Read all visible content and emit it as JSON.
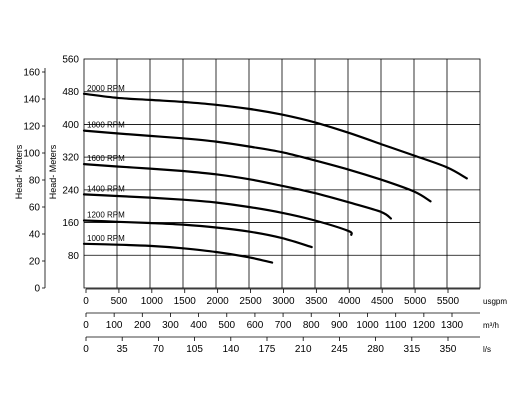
{
  "chart_data": {
    "type": "line",
    "title": "",
    "ylabel_feet": "Head- Meters",
    "ylabel_meters": "Head- Meters",
    "feet_ticks": [
      "0",
      "20",
      "40",
      "60",
      "80",
      "100",
      "120",
      "140",
      "160"
    ],
    "meter_ticks": [
      "80",
      "160",
      "240",
      "320",
      "400",
      "480",
      "560"
    ],
    "x_usgpm": {
      "label": "usgpm",
      "ticks": [
        "0",
        "500",
        "1000",
        "1500",
        "2000",
        "2500",
        "3000",
        "3500",
        "4000",
        "4500",
        "5000",
        "5500"
      ],
      "range": [
        0,
        6000
      ]
    },
    "x_m3h": {
      "label": "m³/h",
      "ticks": [
        "0",
        "100",
        "200",
        "300",
        "400",
        "500",
        "600",
        "700",
        "800",
        "900",
        "1000",
        "1100",
        "1200",
        "1300"
      ]
    },
    "x_ls": {
      "label": "l/s",
      "ticks": [
        "0",
        "35",
        "70",
        "105",
        "140",
        "175",
        "210",
        "245",
        "280",
        "315",
        "350"
      ]
    },
    "ylim": [
      0,
      560
    ],
    "grid": true,
    "series": [
      {
        "name": "2000 RPM",
        "x": [
          0,
          500,
          1000,
          1500,
          2000,
          2500,
          3000,
          3500,
          4000,
          4500,
          5000,
          5500,
          5800
        ],
        "y": [
          475,
          465,
          460,
          455,
          448,
          438,
          424,
          405,
          380,
          352,
          324,
          295,
          268
        ]
      },
      {
        "name": "1800 RPM",
        "x": [
          0,
          500,
          1000,
          1500,
          2000,
          2500,
          3000,
          3500,
          4000,
          4500,
          5000,
          5250
        ],
        "y": [
          385,
          378,
          372,
          366,
          358,
          346,
          332,
          312,
          290,
          265,
          236,
          212
        ]
      },
      {
        "name": "1600 RPM",
        "x": [
          0,
          500,
          1000,
          1500,
          2000,
          2500,
          3000,
          3500,
          4000,
          4500,
          4650
        ],
        "y": [
          303,
          297,
          292,
          286,
          278,
          266,
          250,
          232,
          210,
          186,
          170
        ]
      },
      {
        "name": "1400 RPM",
        "x": [
          0,
          500,
          1000,
          1500,
          2000,
          2500,
          3000,
          3500,
          4000,
          4050
        ],
        "y": [
          229,
          225,
          221,
          216,
          209,
          198,
          184,
          165,
          140,
          130
        ]
      },
      {
        "name": "1200 RPM",
        "x": [
          0,
          500,
          1000,
          1500,
          2000,
          2500,
          3000,
          3450
        ],
        "y": [
          165,
          162,
          159,
          155,
          148,
          138,
          122,
          100
        ]
      },
      {
        "name": "1000 RPM",
        "x": [
          0,
          500,
          1000,
          1500,
          2000,
          2500,
          2850
        ],
        "y": [
          108,
          106,
          103,
          97,
          88,
          75,
          62
        ]
      }
    ]
  }
}
